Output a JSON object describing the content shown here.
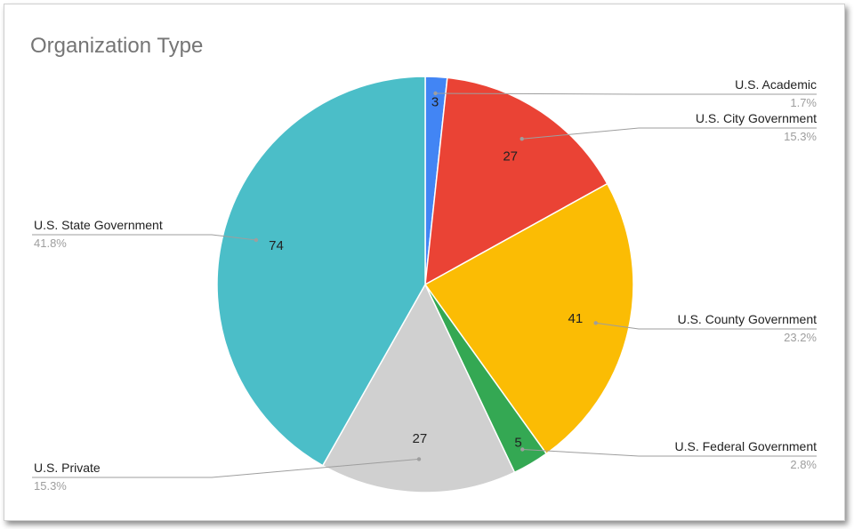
{
  "chart_data": {
    "type": "pie",
    "title": "Organization Type",
    "slices": [
      {
        "label": "U.S. Academic",
        "value": 3,
        "percent": "1.7%",
        "color": "#4285f4"
      },
      {
        "label": "U.S. City Government",
        "value": 27,
        "percent": "15.3%",
        "color": "#ea4335"
      },
      {
        "label": "U.S. County Government",
        "value": 41,
        "percent": "23.2%",
        "color": "#fbbc04"
      },
      {
        "label": "U.S. Federal Government",
        "value": 5,
        "percent": "2.8%",
        "color": "#34a853"
      },
      {
        "label": "U.S. Private",
        "value": 27,
        "percent": "15.3%",
        "color": "#d0d0d0"
      },
      {
        "label": "U.S. State Government",
        "value": 74,
        "percent": "41.8%",
        "color": "#4bbec8"
      }
    ]
  }
}
